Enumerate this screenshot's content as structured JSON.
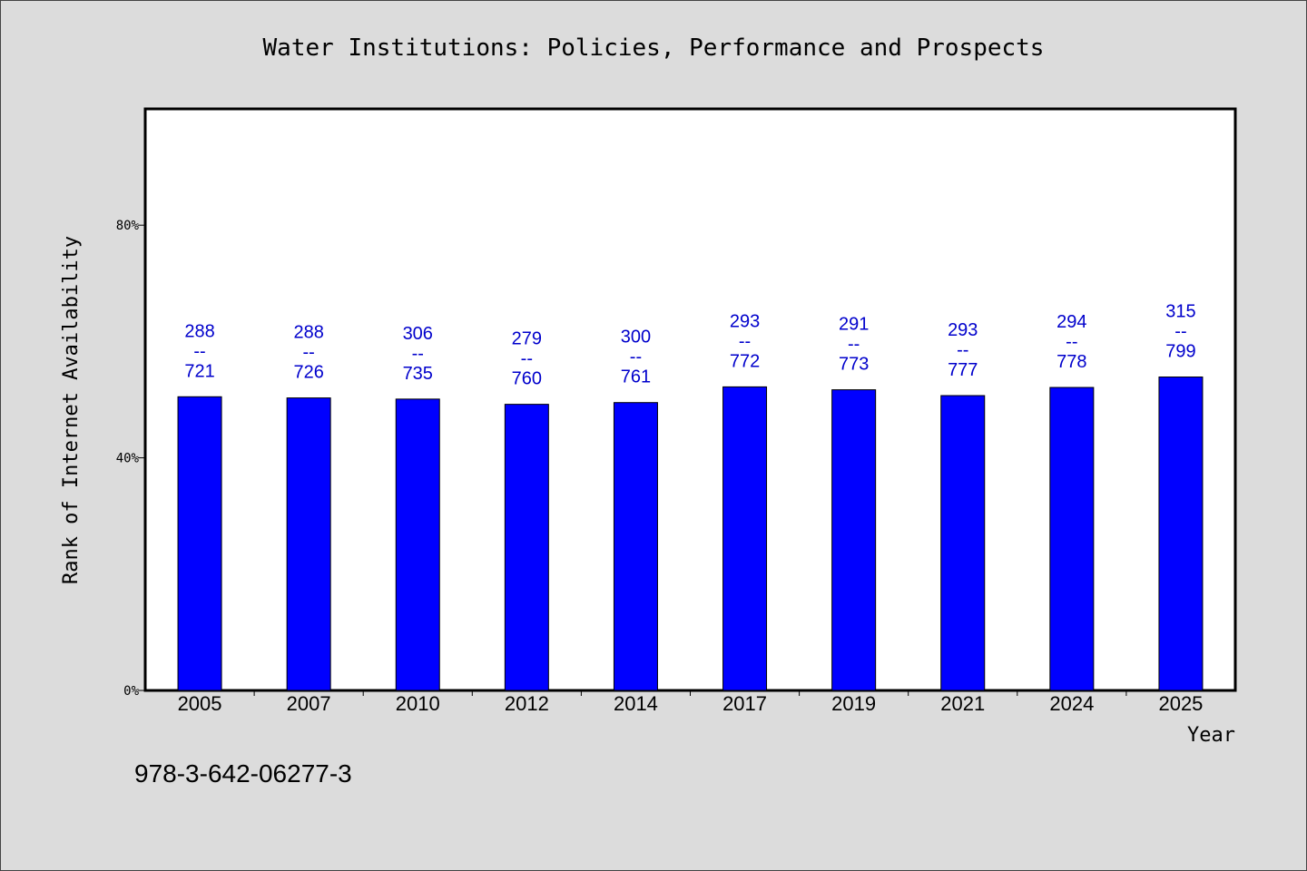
{
  "chart_data": {
    "type": "bar",
    "title": "Water Institutions: Policies, Performance and Prospects",
    "xlabel": "Year",
    "ylabel": "Rank of Internet Availability",
    "categories": [
      "2005",
      "2007",
      "2010",
      "2012",
      "2014",
      "2017",
      "2019",
      "2021",
      "2024",
      "2025"
    ],
    "values": [
      50.5,
      50.3,
      50.1,
      49.2,
      49.5,
      52.2,
      51.7,
      50.7,
      52.1,
      53.9
    ],
    "value_labels": [
      {
        "top": "288",
        "sep": "--",
        "bottom": "721"
      },
      {
        "top": "288",
        "sep": "--",
        "bottom": "726"
      },
      {
        "top": "306",
        "sep": "--",
        "bottom": "735"
      },
      {
        "top": "279",
        "sep": "--",
        "bottom": "760"
      },
      {
        "top": "300",
        "sep": "--",
        "bottom": "761"
      },
      {
        "top": "293",
        "sep": "--",
        "bottom": "772"
      },
      {
        "top": "291",
        "sep": "--",
        "bottom": "773"
      },
      {
        "top": "293",
        "sep": "--",
        "bottom": "777"
      },
      {
        "top": "294",
        "sep": "--",
        "bottom": "778"
      },
      {
        "top": "315",
        "sep": "--",
        "bottom": "799"
      }
    ],
    "yticks": [
      0,
      40,
      80
    ],
    "ytick_labels": [
      "0%",
      "40%",
      "80%"
    ],
    "ylim": [
      0,
      100
    ],
    "bar_color": "#0000ff",
    "label_color": "#0000cc",
    "grid": false
  },
  "footnote": "978-3-642-06277-3"
}
